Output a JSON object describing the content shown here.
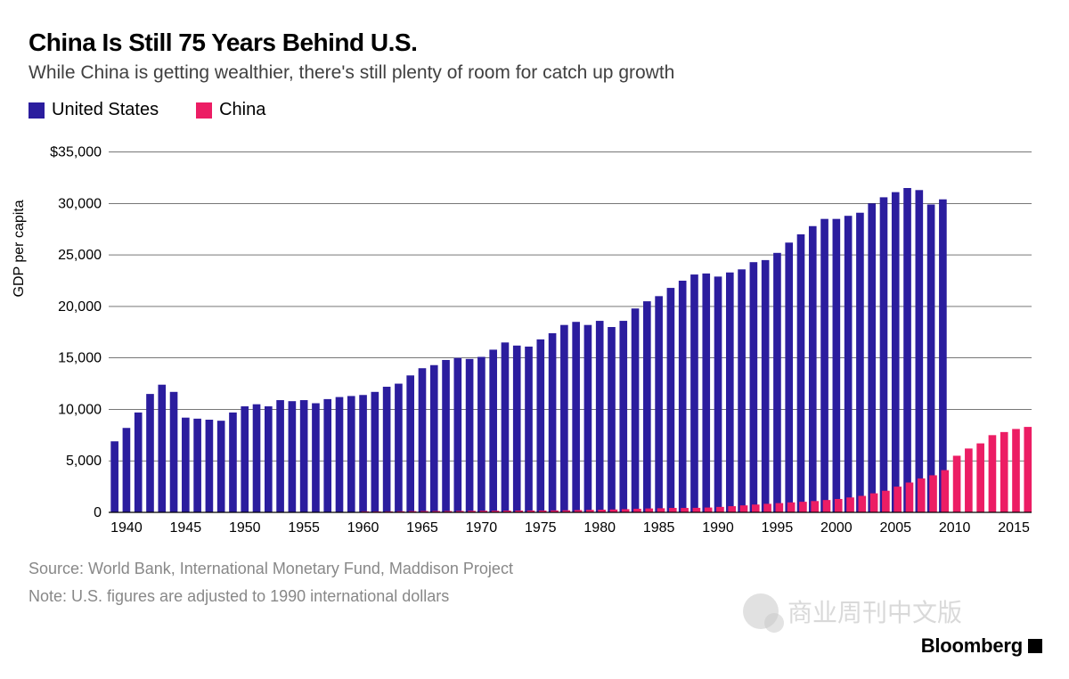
{
  "title": "China Is Still 75 Years Behind U.S.",
  "subtitle": "While China is getting wealthier, there's still plenty of room for catch up growth",
  "legend": {
    "series1": {
      "label": "United States",
      "color": "#2b1d9e"
    },
    "series2": {
      "label": "China",
      "color": "#ec1d64"
    }
  },
  "chart": {
    "type": "bar",
    "y_label": "GDP per capita",
    "years_start": 1939,
    "years_end": 2016,
    "x_tick_start": 1940,
    "x_tick_step": 5,
    "x_tick_end": 2015,
    "ylim": [
      0,
      36000
    ],
    "y_ticks": [
      0,
      5000,
      10000,
      15000,
      20000,
      25000,
      30000,
      35000
    ],
    "y_tick_labels": [
      "0",
      "5,000",
      "10,000",
      "15,000",
      "20,000",
      "25,000",
      "30,000",
      "$35,000"
    ],
    "grid_color": "#000000",
    "grid_opacity": 0.9,
    "axis_color": "#000000",
    "background_color": "#ffffff",
    "bar_gap_ratio": 0.35,
    "label_fontsize": 16,
    "series": {
      "us": {
        "color": "#2b1d9e",
        "data": {
          "1939": 6900,
          "1940": 8200,
          "1941": 9700,
          "1942": 11500,
          "1943": 12400,
          "1944": 11700,
          "1945": 9200,
          "1946": 9100,
          "1947": 9000,
          "1948": 8900,
          "1949": 9700,
          "1950": 10300,
          "1951": 10500,
          "1952": 10300,
          "1953": 10900,
          "1954": 10800,
          "1955": 10900,
          "1956": 10600,
          "1957": 11000,
          "1958": 11200,
          "1959": 11300,
          "1960": 11400,
          "1961": 11700,
          "1962": 12200,
          "1963": 12500,
          "1964": 13300,
          "1965": 14000,
          "1966": 14300,
          "1967": 14800,
          "1968": 15000,
          "1969": 14900,
          "1970": 15100,
          "1971": 15800,
          "1972": 16500,
          "1973": 16200,
          "1974": 16100,
          "1975": 16800,
          "1976": 17400,
          "1977": 18200,
          "1978": 18500,
          "1979": 18200,
          "1980": 18600,
          "1981": 18000,
          "1982": 18600,
          "1983": 19800,
          "1984": 20500,
          "1985": 21000,
          "1986": 21800,
          "1987": 22500,
          "1988": 23100,
          "1989": 23200,
          "1990": 22900,
          "1991": 23300,
          "1992": 23600,
          "1993": 24300,
          "1994": 24500,
          "1995": 25200,
          "1996": 26200,
          "1997": 27000,
          "1998": 27800,
          "1999": 28500,
          "2000": 28500,
          "2001": 28800,
          "2002": 29100,
          "2003": 30000,
          "2004": 30600,
          "2005": 31100,
          "2006": 31500,
          "2007": 31300,
          "2008": 29900,
          "2009": 30400
        }
      },
      "china": {
        "color": "#ec1d64",
        "data": {
          "1960": 100,
          "1961": 90,
          "1962": 95,
          "1963": 110,
          "1964": 120,
          "1965": 130,
          "1966": 130,
          "1967": 130,
          "1968": 140,
          "1969": 150,
          "1970": 160,
          "1971": 160,
          "1972": 170,
          "1973": 175,
          "1974": 180,
          "1975": 180,
          "1976": 190,
          "1977": 200,
          "1978": 220,
          "1979": 240,
          "1980": 260,
          "1981": 280,
          "1982": 310,
          "1983": 350,
          "1984": 380,
          "1985": 400,
          "1986": 430,
          "1987": 430,
          "1988": 440,
          "1989": 470,
          "1990": 530,
          "1991": 600,
          "1992": 680,
          "1993": 760,
          "1994": 830,
          "1995": 900,
          "1996": 970,
          "1997": 1030,
          "1998": 1100,
          "1999": 1200,
          "2000": 1300,
          "2001": 1450,
          "2002": 1600,
          "2003": 1850,
          "2004": 2100,
          "2005": 2500,
          "2006": 2900,
          "2007": 3300,
          "2008": 3600,
          "2009": 4100,
          "2010": 5500,
          "2011": 6200,
          "2012": 6700,
          "2013": 7500,
          "2014": 7800,
          "2015": 8100,
          "2016": 8300
        }
      }
    }
  },
  "footer": {
    "source": "Source: World Bank, International Monetary Fund, Maddison Project",
    "note": "Note: U.S. figures are adjusted to 1990 international dollars"
  },
  "brand": "Bloomberg",
  "watermark": "商业周刊中文版"
}
